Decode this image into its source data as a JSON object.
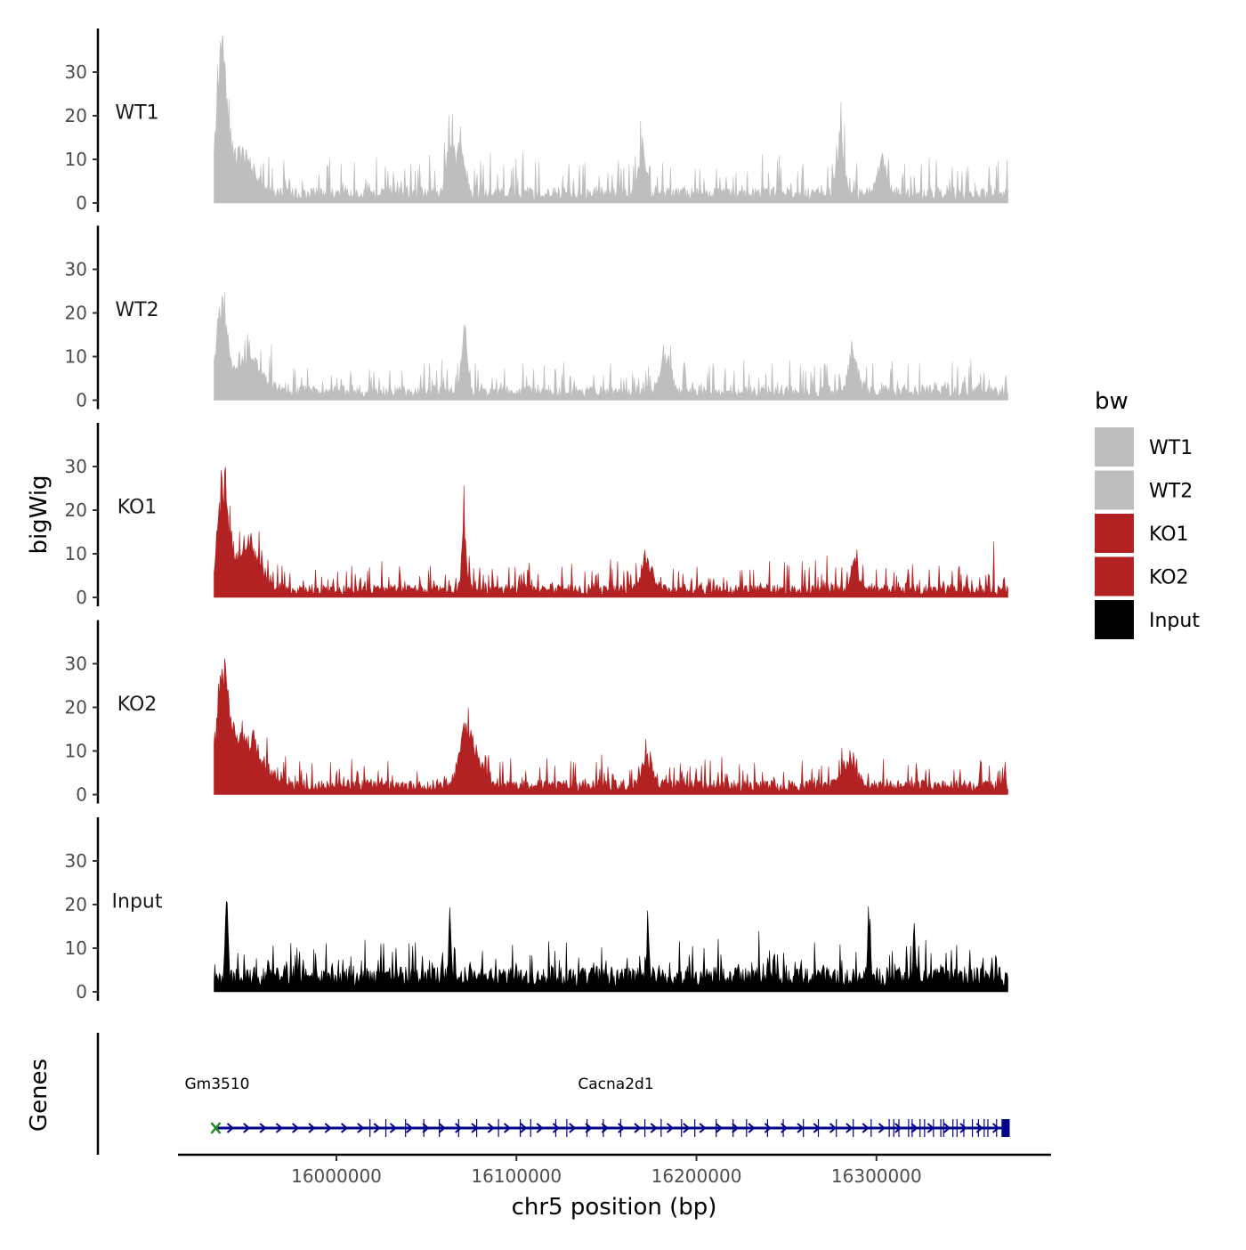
{
  "chart_data": {
    "type": "area",
    "title": "",
    "ylabel": "bigWig",
    "xlabel": "chr5 position (bp)",
    "genes_label": "Genes",
    "ylim": [
      0,
      40
    ],
    "yticks": [
      0,
      10,
      20,
      30
    ],
    "xlim": [
      15912000,
      16397000
    ],
    "xticks": [
      16000000,
      16100000,
      16200000,
      16300000
    ],
    "xtick_labels": [
      "16000000",
      "16100000",
      "16200000",
      "16300000"
    ],
    "signal_start": 15932000,
    "signal_end": 16373000,
    "tracks": [
      {
        "name": "WT1",
        "label": "WT1",
        "color": "#bebebe",
        "seed": 11,
        "base": 3.2,
        "amp": 8,
        "peaks": [
          [
            15936000,
            34,
            2500
          ],
          [
            15945000,
            10,
            8000
          ],
          [
            16063000,
            12,
            2000
          ],
          [
            16069000,
            11,
            2500
          ],
          [
            16170000,
            12,
            2000
          ],
          [
            16280000,
            13,
            2000
          ],
          [
            16303000,
            9,
            2500
          ]
        ]
      },
      {
        "name": "WT2",
        "label": "WT2",
        "color": "#bebebe",
        "seed": 23,
        "base": 3.0,
        "amp": 6,
        "peaks": [
          [
            15936000,
            19,
            3000
          ],
          [
            15950000,
            8,
            8000
          ],
          [
            16071000,
            15,
            1500
          ],
          [
            16183000,
            8,
            3000
          ],
          [
            16287000,
            9,
            2500
          ]
        ]
      },
      {
        "name": "KO1",
        "label": "KO1",
        "color": "#b22222",
        "seed": 37,
        "base": 2.6,
        "amp": 6,
        "peaks": [
          [
            15937000,
            24,
            3000
          ],
          [
            15951000,
            10,
            7000
          ],
          [
            16071000,
            16,
            1200
          ],
          [
            16173000,
            7,
            3000
          ],
          [
            16288000,
            8,
            2000
          ]
        ]
      },
      {
        "name": "KO2",
        "label": "KO2",
        "color": "#b22222",
        "seed": 53,
        "base": 3.0,
        "amp": 6,
        "peaks": [
          [
            15937000,
            26,
            3500
          ],
          [
            15951000,
            11,
            8000
          ],
          [
            16072000,
            9,
            3000
          ],
          [
            16075000,
            7,
            6000
          ],
          [
            16173000,
            7,
            3000
          ],
          [
            16285000,
            6,
            4000
          ]
        ]
      },
      {
        "name": "Input",
        "label": "Input",
        "color": "#000000",
        "seed": 71,
        "base": 5.0,
        "amp": 7,
        "peaks": [
          [
            15939000,
            16,
            800
          ],
          [
            16063000,
            14,
            600
          ],
          [
            16173000,
            13,
            600
          ],
          [
            16296000,
            15,
            600
          ],
          [
            16321000,
            14,
            600
          ]
        ]
      }
    ],
    "legend": {
      "title": "bw",
      "position": "right",
      "entries": [
        {
          "label": "WT1",
          "color": "#bebebe"
        },
        {
          "label": "WT2",
          "color": "#bebebe"
        },
        {
          "label": "KO1",
          "color": "#b22222"
        },
        {
          "label": "KO2",
          "color": "#b22222"
        },
        {
          "label": "Input",
          "color": "#000000"
        }
      ]
    },
    "genes": [
      {
        "name": "Gm3510",
        "start": 15933000,
        "end": 15935500,
        "color": "#228b22",
        "strand": "+"
      },
      {
        "name": "Cacna2d1",
        "start": 15934000,
        "end": 16374000,
        "color": "#00008b",
        "strand": "+"
      }
    ]
  }
}
